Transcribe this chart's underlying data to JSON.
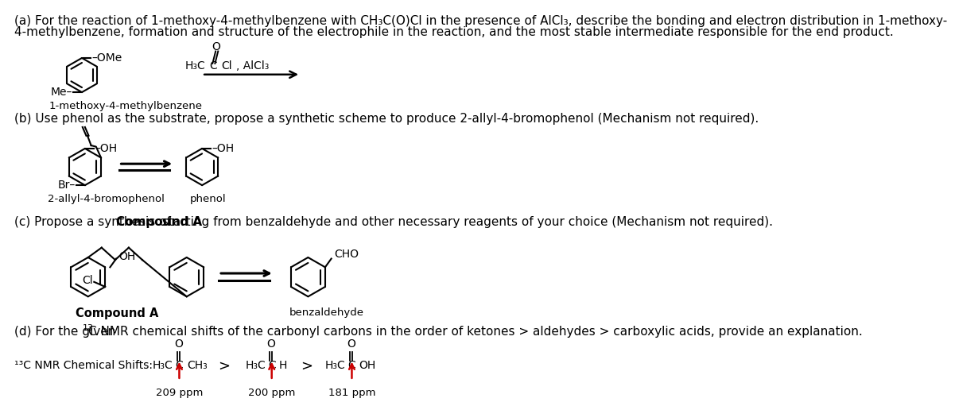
{
  "bg_color": "#ffffff",
  "text_color": "#000000",
  "title_a_line1": "(a) For the reaction of 1-methoxy-4-methylbenzene with CH₃C(O)Cl in the presence of AlCl₃, describe the bonding and electron distribution in 1-methoxy-",
  "title_a_line2": "4-methylbenzene, formation and structure of the electrophile in the reaction, and the most stable intermediate responsible for the end product.",
  "title_b": "(b) Use phenol as the substrate, propose a synthetic scheme to produce 2-allyl-4-bromophenol (Mechanism not required).",
  "title_c_pre": "(c) Propose a synthesis of ",
  "title_c_bold": "Compound A",
  "title_c_post": " starting from benzaldehyde and other necessary reagents of your choice (Mechanism not required).",
  "title_d_pre": "(d) For the given ",
  "title_d_sup": "13",
  "title_d_post": "C NMR chemical shifts of the carbonyl carbons in the order of ketones > aldehydes > carboxylic acids, provide an explanation.",
  "label_1methoxy": "1-methoxy-4-methylbenzene",
  "label_2allyl4bromo": "2-allyl-4-bromophenol",
  "label_phenol": "phenol",
  "label_compoundA": "Compound A",
  "label_benzaldehyde": "benzaldehyde",
  "nmr_label_pre": "",
  "nmr_label_sup": "13",
  "nmr_label_post": "C NMR Chemical Shifts:",
  "ppm_209": "209 ppm",
  "ppm_200": "200 ppm",
  "ppm_181": "181 ppm",
  "arrow_color": "#cc0000",
  "font_size_main": 11.0,
  "font_size_chem": 10.0,
  "font_size_label": 9.5,
  "font_size_small": 8.5
}
